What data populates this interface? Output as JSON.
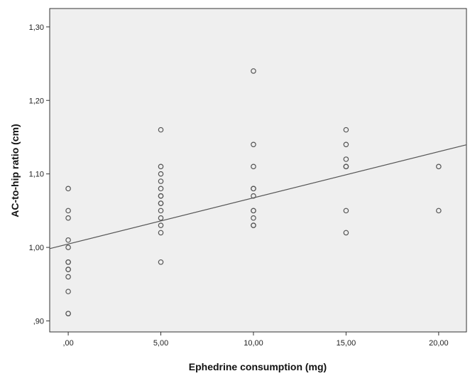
{
  "chart_data": {
    "type": "scatter",
    "title": "",
    "xlabel": "Ephedrine consumption (mg)",
    "ylabel": "AC-to-hip ratio (cm)",
    "xlim": [
      -1,
      21.5
    ],
    "ylim": [
      0.885,
      1.325
    ],
    "x_ticks": [
      0,
      5,
      10,
      15,
      20
    ],
    "x_tick_labels": [
      ",00",
      "5,00",
      "10,00",
      "15,00",
      "20,00"
    ],
    "y_ticks": [
      0.9,
      1.0,
      1.1,
      1.2,
      1.3
    ],
    "y_tick_labels": [
      ",90",
      "1,00",
      "1,10",
      "1,20",
      "1,30"
    ],
    "grid": false,
    "plot_background": "#efefef",
    "point_color": "#555555",
    "line_color": "#555555",
    "points": {
      "x": [
        0,
        0,
        0,
        0,
        0,
        0,
        0,
        0,
        0,
        0,
        0,
        0,
        0,
        5,
        5,
        5,
        5,
        5,
        5,
        5,
        5,
        5,
        5,
        5,
        5,
        5,
        5,
        10,
        10,
        10,
        10,
        10,
        10,
        10,
        10,
        10,
        10,
        10,
        15,
        15,
        15,
        15,
        15,
        15,
        15,
        20,
        20
      ],
      "y": [
        1.08,
        1.05,
        1.04,
        1.01,
        1.0,
        0.98,
        0.98,
        0.97,
        0.97,
        0.96,
        0.94,
        0.91,
        0.91,
        1.16,
        1.11,
        1.1,
        1.09,
        1.08,
        1.07,
        1.07,
        1.06,
        1.06,
        1.05,
        1.04,
        1.03,
        1.02,
        0.98,
        1.24,
        1.14,
        1.11,
        1.08,
        1.08,
        1.07,
        1.05,
        1.05,
        1.04,
        1.03,
        1.03,
        1.16,
        1.14,
        1.12,
        1.11,
        1.11,
        1.05,
        1.02,
        1.11,
        1.05
      ]
    },
    "fit_line": {
      "intercept": 1.0046,
      "slope": 0.00628
    }
  }
}
